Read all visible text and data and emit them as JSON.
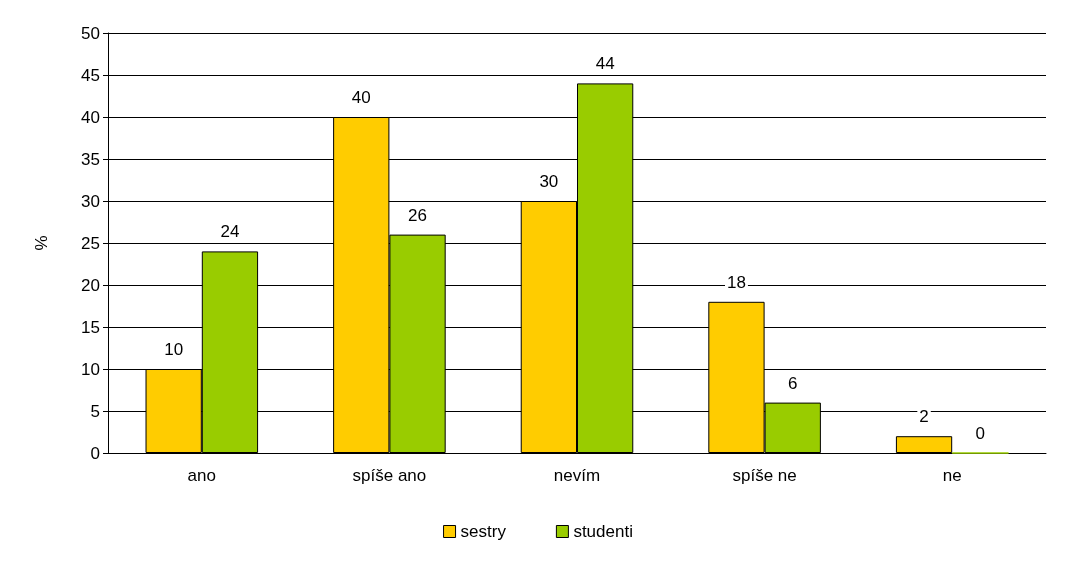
{
  "chart_data": {
    "type": "bar",
    "ylabel": "%",
    "categories": [
      "ano",
      "spíše ano",
      "nevím",
      "spíše ne",
      "ne"
    ],
    "series": [
      {
        "name": "sestry",
        "color": "#ffcc00",
        "values": [
          10,
          40,
          30,
          18,
          2
        ]
      },
      {
        "name": "studenti",
        "color": "#99cc00",
        "values": [
          24,
          26,
          44,
          6,
          0
        ]
      }
    ],
    "ylim": [
      0,
      50
    ],
    "yticks": [
      0,
      5,
      10,
      15,
      20,
      25,
      30,
      35,
      40,
      45,
      50
    ],
    "grid": "y",
    "legend": "bottom",
    "data_labels": true
  }
}
